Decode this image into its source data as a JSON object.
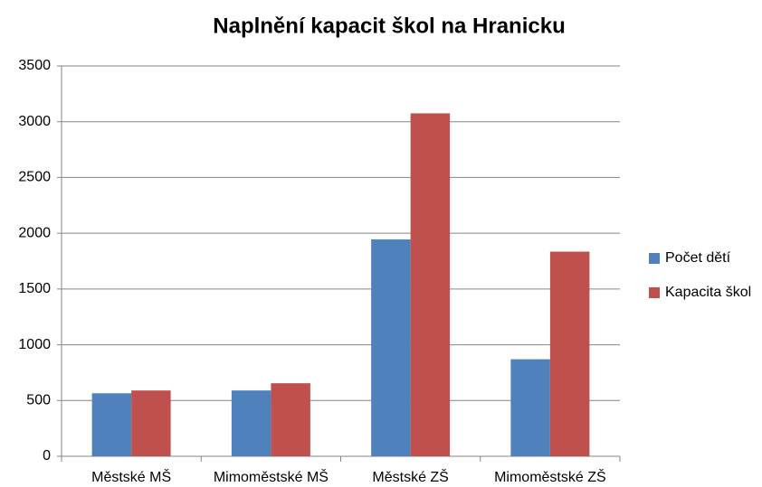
{
  "chart_data": {
    "type": "bar",
    "title": "Naplnění kapacit škol na Hranicku",
    "categories": [
      "Městské MŠ",
      "Mimoměstské MŠ",
      "Městské ZŠ",
      "Mimoměstské ZŠ"
    ],
    "series": [
      {
        "name": "Počet dětí",
        "color": "#4f81bd",
        "values": [
          565,
          590,
          1945,
          870
        ]
      },
      {
        "name": "Kapacita škol",
        "color": "#c0504d",
        "values": [
          590,
          655,
          3075,
          1835
        ]
      }
    ],
    "ylim": [
      0,
      3500
    ],
    "yticks": [
      0,
      500,
      1000,
      1500,
      2000,
      2500,
      3000,
      3500
    ],
    "grid": true,
    "legend": "right"
  }
}
